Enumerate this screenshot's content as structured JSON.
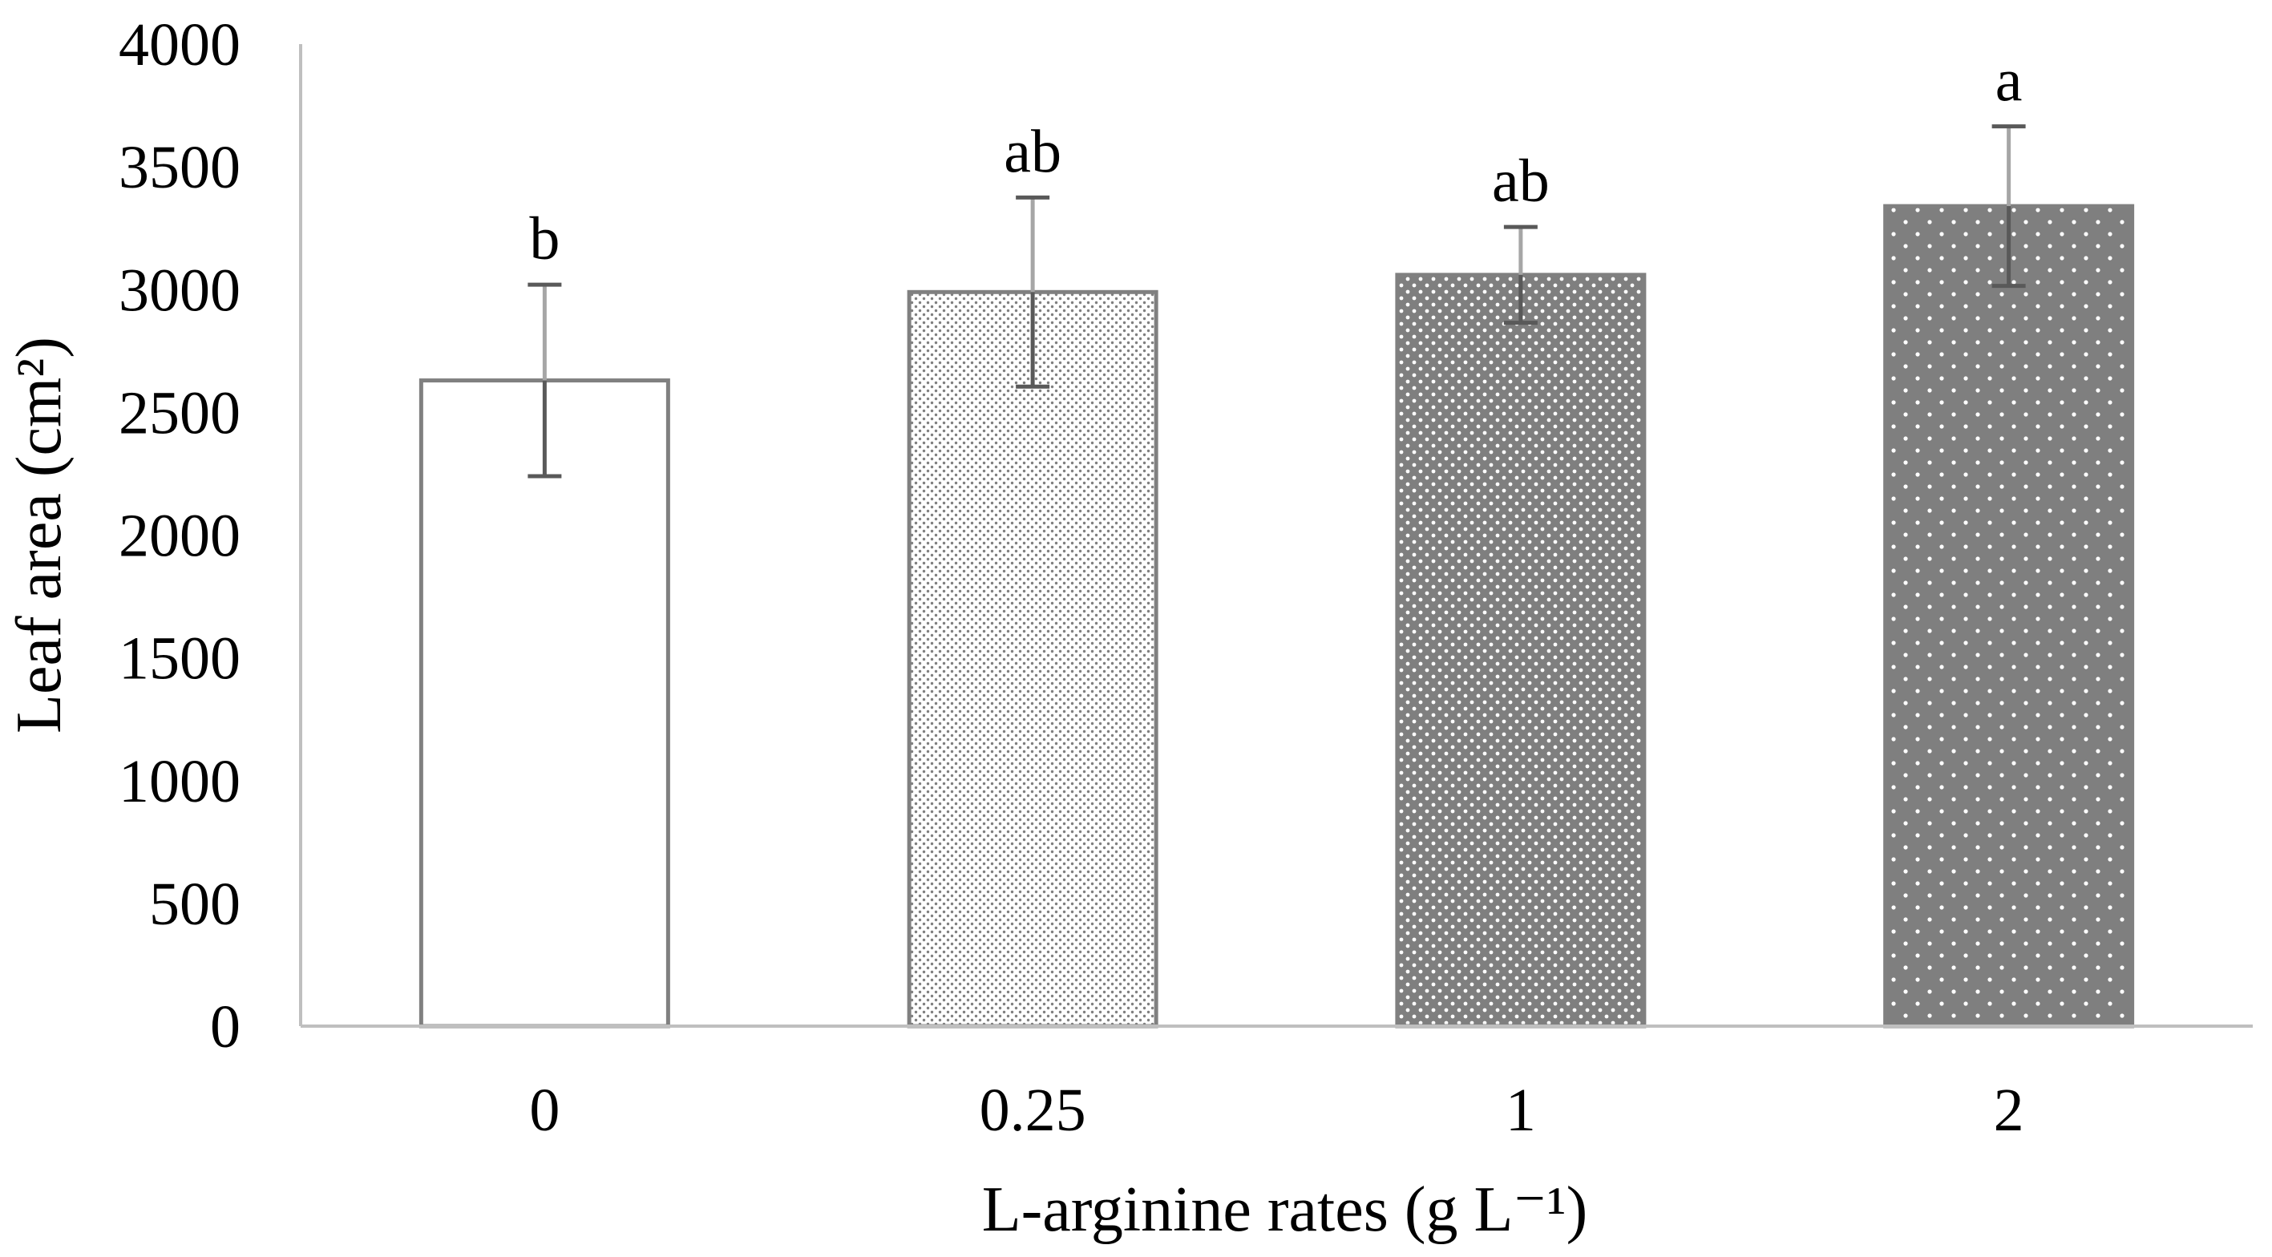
{
  "chart_data": {
    "type": "bar",
    "title": "",
    "xlabel": "L-arginine rates (g L⁻¹)",
    "ylabel": "Leaf area (cm²)",
    "ylim": [
      0,
      4000
    ],
    "yticks": [
      0,
      500,
      1000,
      1500,
      2000,
      2500,
      3000,
      3500,
      4000
    ],
    "grid": false,
    "legend": "none",
    "categories": [
      "0",
      "0.25",
      "1",
      "2"
    ],
    "values": [
      2630,
      2990,
      3060,
      3340
    ],
    "error": [
      390,
      385,
      195,
      325
    ],
    "significance_letters": [
      "b",
      "ab",
      "ab",
      "a"
    ],
    "bar_patterns": [
      "none",
      "fine-dots",
      "medium-dots",
      "sparse-dots"
    ]
  },
  "colors": {
    "axis": "#bfbfbf",
    "bar_outline": "#808080",
    "bar_fill_dark": "#7f7f7f",
    "bar_fill_light": "#ffffff",
    "error_bar": "#595959",
    "error_bar_light": "#a6a6a6",
    "text": "#000000"
  }
}
